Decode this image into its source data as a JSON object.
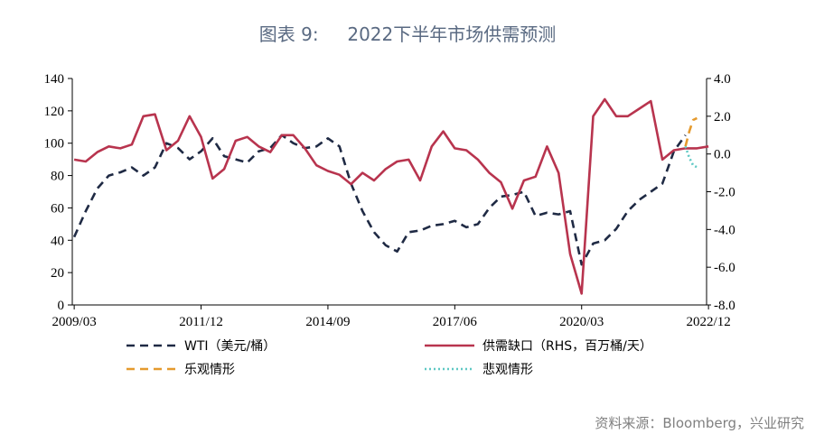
{
  "title": "图表 9:     2022下半年市场供需预测",
  "source": "资料来源：Bloomberg，兴业研究",
  "chart_data": {
    "type": "line",
    "x_ticks": [
      "2009/03",
      "2011/12",
      "2014/09",
      "2017/06",
      "2020/03",
      "2022/12"
    ],
    "y_left": {
      "ylim": [
        0,
        140
      ],
      "ticks": [
        "0",
        "20",
        "40",
        "60",
        "80",
        "100",
        "120",
        "140"
      ]
    },
    "y_right": {
      "ylim": [
        -8,
        4
      ],
      "ticks": [
        "-8.0",
        "-6.0",
        "-4.0",
        "-2.0",
        "0.0",
        "2.0",
        "4.0"
      ]
    },
    "series": [
      {
        "name": "WTI（美元/桶）",
        "axis": "left",
        "color": "#1f2a44",
        "style": "dashed",
        "x": [
          "2009/03",
          "2009/06",
          "2009/09",
          "2009/12",
          "2010/03",
          "2010/06",
          "2010/09",
          "2010/12",
          "2011/03",
          "2011/06",
          "2011/09",
          "2011/12",
          "2012/03",
          "2012/06",
          "2012/09",
          "2012/12",
          "2013/03",
          "2013/06",
          "2013/09",
          "2013/12",
          "2014/03",
          "2014/06",
          "2014/09",
          "2014/12",
          "2015/03",
          "2015/06",
          "2015/09",
          "2015/12",
          "2016/03",
          "2016/06",
          "2016/09",
          "2016/12",
          "2017/03",
          "2017/06",
          "2017/09",
          "2017/12",
          "2018/03",
          "2018/06",
          "2018/09",
          "2018/12",
          "2019/03",
          "2019/06",
          "2019/09",
          "2019/12",
          "2020/03",
          "2020/06",
          "2020/09",
          "2020/12",
          "2021/03",
          "2021/06",
          "2021/09",
          "2021/12",
          "2022/03",
          "2022/06"
        ],
        "values": [
          42,
          58,
          72,
          80,
          82,
          85,
          80,
          85,
          100,
          97,
          90,
          95,
          103,
          92,
          90,
          88,
          95,
          97,
          105,
          100,
          97,
          98,
          103,
          98,
          75,
          58,
          45,
          37,
          33,
          45,
          46,
          49,
          50,
          52,
          48,
          50,
          60,
          67,
          68,
          70,
          55,
          57,
          56,
          58,
          25,
          38,
          40,
          47,
          58,
          65,
          70,
          75,
          95,
          105
        ]
      },
      {
        "name": "供需缺口（RHS，百万桶/天）",
        "axis": "right",
        "color": "#b8344e",
        "style": "solid",
        "x": [
          "2009/03",
          "2009/06",
          "2009/09",
          "2009/12",
          "2010/03",
          "2010/06",
          "2010/09",
          "2010/12",
          "2011/03",
          "2011/06",
          "2011/09",
          "2011/12",
          "2012/03",
          "2012/06",
          "2012/09",
          "2012/12",
          "2013/03",
          "2013/06",
          "2013/09",
          "2013/12",
          "2014/03",
          "2014/06",
          "2014/09",
          "2014/12",
          "2015/03",
          "2015/06",
          "2015/09",
          "2015/12",
          "2016/03",
          "2016/06",
          "2016/09",
          "2016/12",
          "2017/03",
          "2017/06",
          "2017/09",
          "2017/12",
          "2018/03",
          "2018/06",
          "2018/09",
          "2018/12",
          "2019/03",
          "2019/06",
          "2019/09",
          "2019/12",
          "2020/03",
          "2020/06",
          "2020/09",
          "2020/12",
          "2021/03",
          "2021/06",
          "2021/09",
          "2021/12",
          "2022/03",
          "2022/06",
          "2022/09",
          "2022/12"
        ],
        "values": [
          -0.3,
          -0.4,
          0.1,
          0.4,
          0.3,
          0.5,
          2.0,
          2.1,
          0.2,
          0.7,
          2.0,
          0.9,
          -1.3,
          -0.8,
          0.7,
          0.9,
          0.4,
          0.1,
          1.0,
          1.0,
          0.3,
          -0.6,
          -0.9,
          -1.1,
          -1.6,
          -1.0,
          -1.4,
          -0.8,
          -0.4,
          -0.3,
          -1.4,
          0.4,
          1.2,
          0.3,
          0.2,
          -0.3,
          -1.0,
          -1.5,
          -2.9,
          -1.4,
          -1.2,
          0.4,
          -1.0,
          -5.3,
          -7.4,
          2.0,
          2.9,
          2.0,
          2.0,
          2.4,
          2.8,
          -0.3,
          0.2,
          0.3,
          0.3,
          0.4
        ]
      },
      {
        "name": "乐观情形",
        "axis": "right",
        "color": "#e59a2e",
        "style": "dashed",
        "x": [
          "2022/06",
          "2022/07",
          "2022/08",
          "2022/09"
        ],
        "values": [
          0.4,
          1.2,
          1.8,
          1.9
        ]
      },
      {
        "name": "悲观情形",
        "axis": "right",
        "color": "#5fc8c4",
        "style": "dotted",
        "x": [
          "2022/06",
          "2022/07",
          "2022/08",
          "2022/09"
        ],
        "values": [
          0.4,
          -0.2,
          -0.6,
          -0.7
        ]
      }
    ],
    "legend": "bottom"
  }
}
